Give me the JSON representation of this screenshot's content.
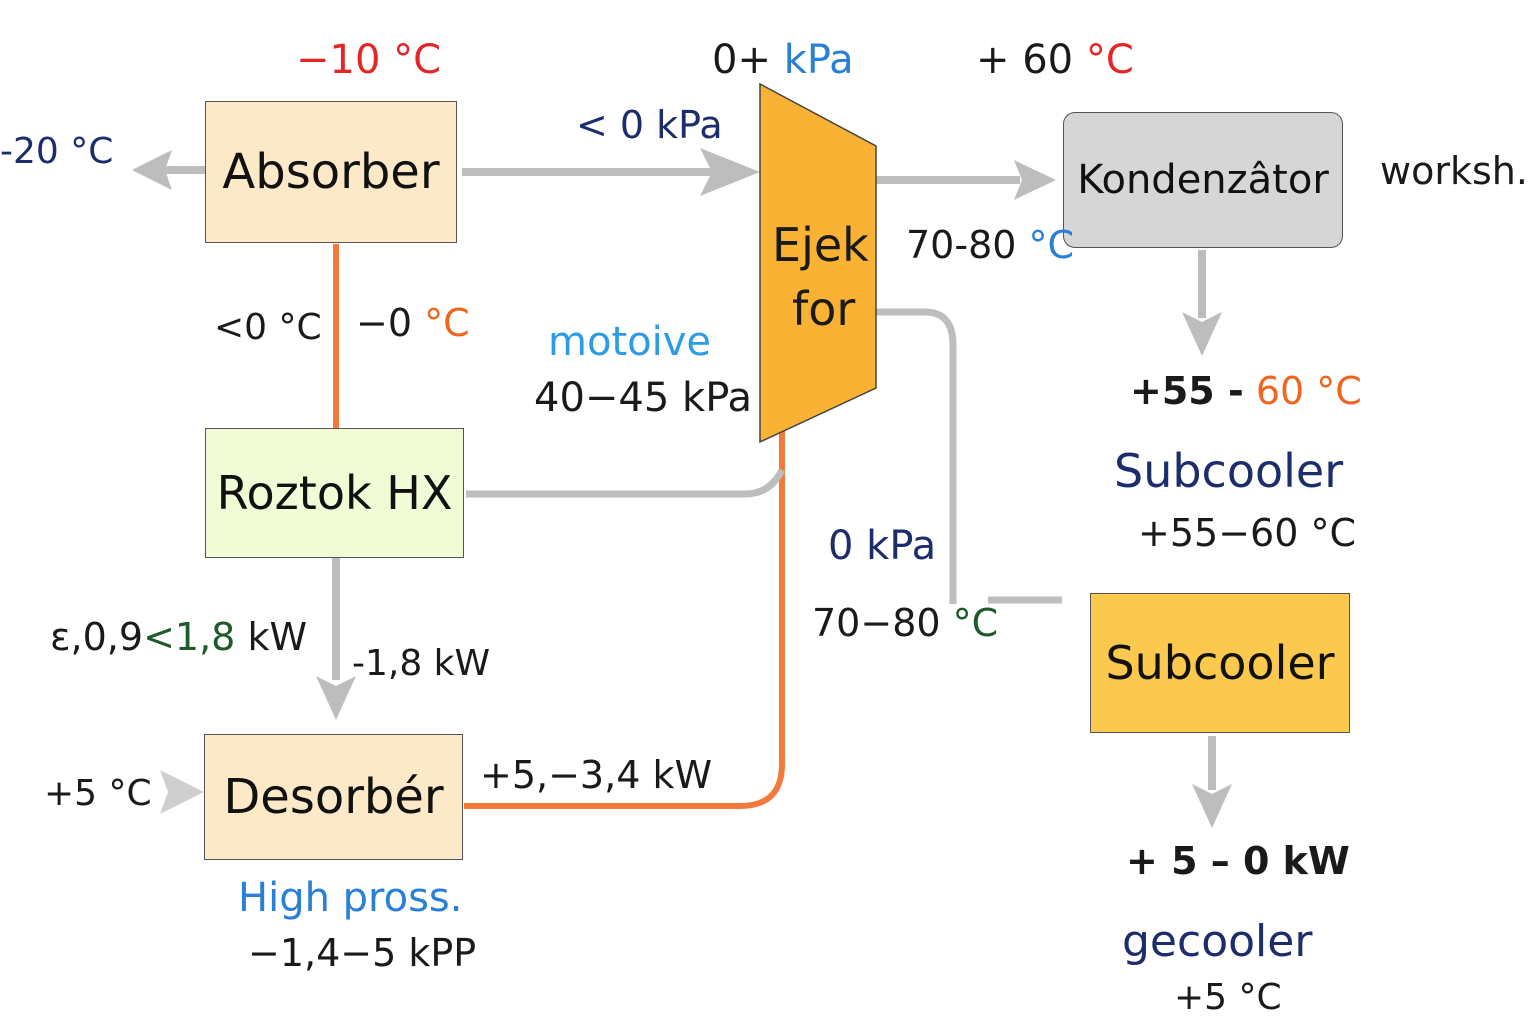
{
  "colors": {
    "flow_gray": "#b5b5b5",
    "flow_orange": "#f47a3a",
    "absorber_fill": "#fbe9c8",
    "roztok_fill": "#f1fbd5",
    "desorber_fill": "#fbe9c8",
    "ejector_fill": "#f9b233",
    "kondenzator_fill": "#d6d6d6",
    "subcooler_fill": "#fbc94e"
  },
  "blocks": {
    "absorber": "Absorber",
    "roztok": "Roztok HX",
    "desorber": "Desorbér",
    "ejector_line1": "Ejek",
    "ejector_line2": "for",
    "kondenzator": "Kondenzâtor",
    "subcooler": "Subcooler"
  },
  "labels": {
    "absorber_top_temp_value": "−10",
    "absorber_top_temp_unit": "°C",
    "left_outlet_temp_value": "-20",
    "left_outlet_temp_unit": "°C",
    "absorber_ejector_pressure": "< 0 kPa",
    "ejector_top_value": "0+",
    "ejector_top_unit": "kPa",
    "condenser_top_temp_value": "+ 60",
    "condenser_top_temp_unit": "°C",
    "ejector_outlet_temp_value": "70-80",
    "ejector_outlet_temp_unit": "°C",
    "worksh": "worksh.",
    "vertical_left_temp": "<0 °C",
    "vertical_right_temp_value": "−0",
    "vertical_right_temp_unit": "°C",
    "motoive": "motoive",
    "motive_pressure": "40−45 kPa",
    "condenser_out_temp_a": "+55 -",
    "condenser_out_temp_b": "60 °C",
    "subcooler_heading": "Subcooler",
    "subcooler_heading_temp": "+55−60 °C",
    "zero_kpa": "0 kPa",
    "return_temp_value": "70−80",
    "return_temp_unit": "°C",
    "epsilon_a": "ε,0,9",
    "epsilon_b": "<1,8",
    "epsilon_c": "kW",
    "roztok_out_kw": "-1,8 kW",
    "desorber_in_temp": "+5 °C",
    "desorber_out_kw": "+5,−3,4 kW",
    "high_press": "High pross.",
    "desorber_pressure": "−1,4−5 kPP",
    "subcooler_out_kw": "+ 5 – 0 kW",
    "gecooler": "gecooler",
    "gecooler_temp": "+5 °C"
  }
}
